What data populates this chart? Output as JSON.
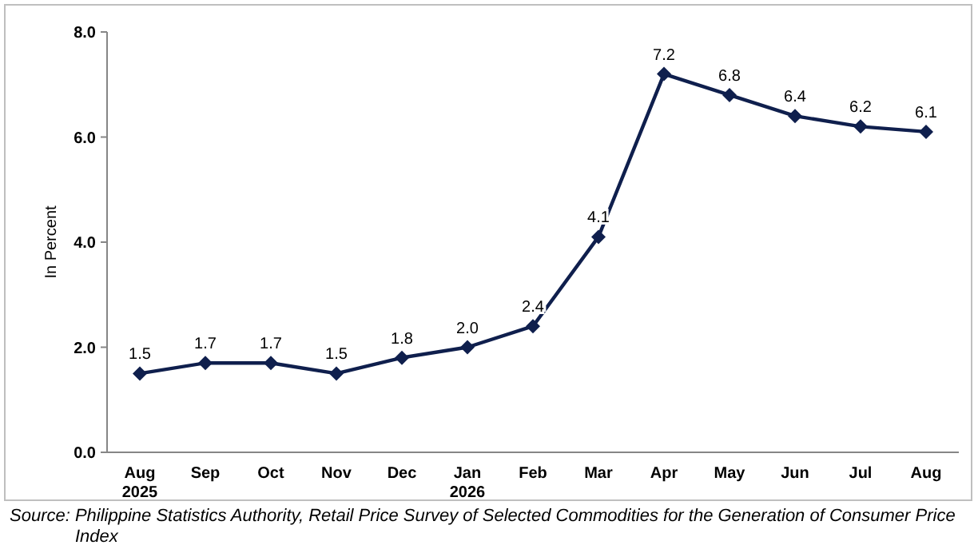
{
  "chart_data": {
    "type": "line",
    "ylabel": "In Percent",
    "categories": [
      "Aug\n2025",
      "Sep",
      "Oct",
      "Nov",
      "Dec",
      "Jan\n2026",
      "Feb",
      "Mar",
      "Apr",
      "May",
      "Jun",
      "Jul",
      "Aug"
    ],
    "series": [
      {
        "color": "#0f1f4d",
        "values": [
          1.5,
          1.7,
          1.7,
          1.5,
          1.8,
          2.0,
          2.4,
          4.1,
          7.2,
          6.8,
          6.4,
          6.2,
          6.1
        ]
      }
    ],
    "ylim": [
      0,
      8
    ],
    "yticks": [
      {
        "value": 0,
        "label": "0.0"
      },
      {
        "value": 2,
        "label": "2.0"
      },
      {
        "value": 4,
        "label": "4.0"
      },
      {
        "value": 6,
        "label": "6.0"
      },
      {
        "value": 8,
        "label": "8.0"
      }
    ],
    "value_labels": [
      "1.5",
      "1.7",
      "1.7",
      "1.5",
      "1.8",
      "2.0",
      "2.4",
      "4.1",
      "7.2",
      "6.8",
      "6.4",
      "6.2",
      "6.1"
    ],
    "marker": "diamond",
    "line_style": "solid",
    "grid": false,
    "annotations": [
      "Source: Philippine Statistics Authority, Retail Price Survey of Selected Commodities for the Generation of Consumer Price Index"
    ]
  }
}
